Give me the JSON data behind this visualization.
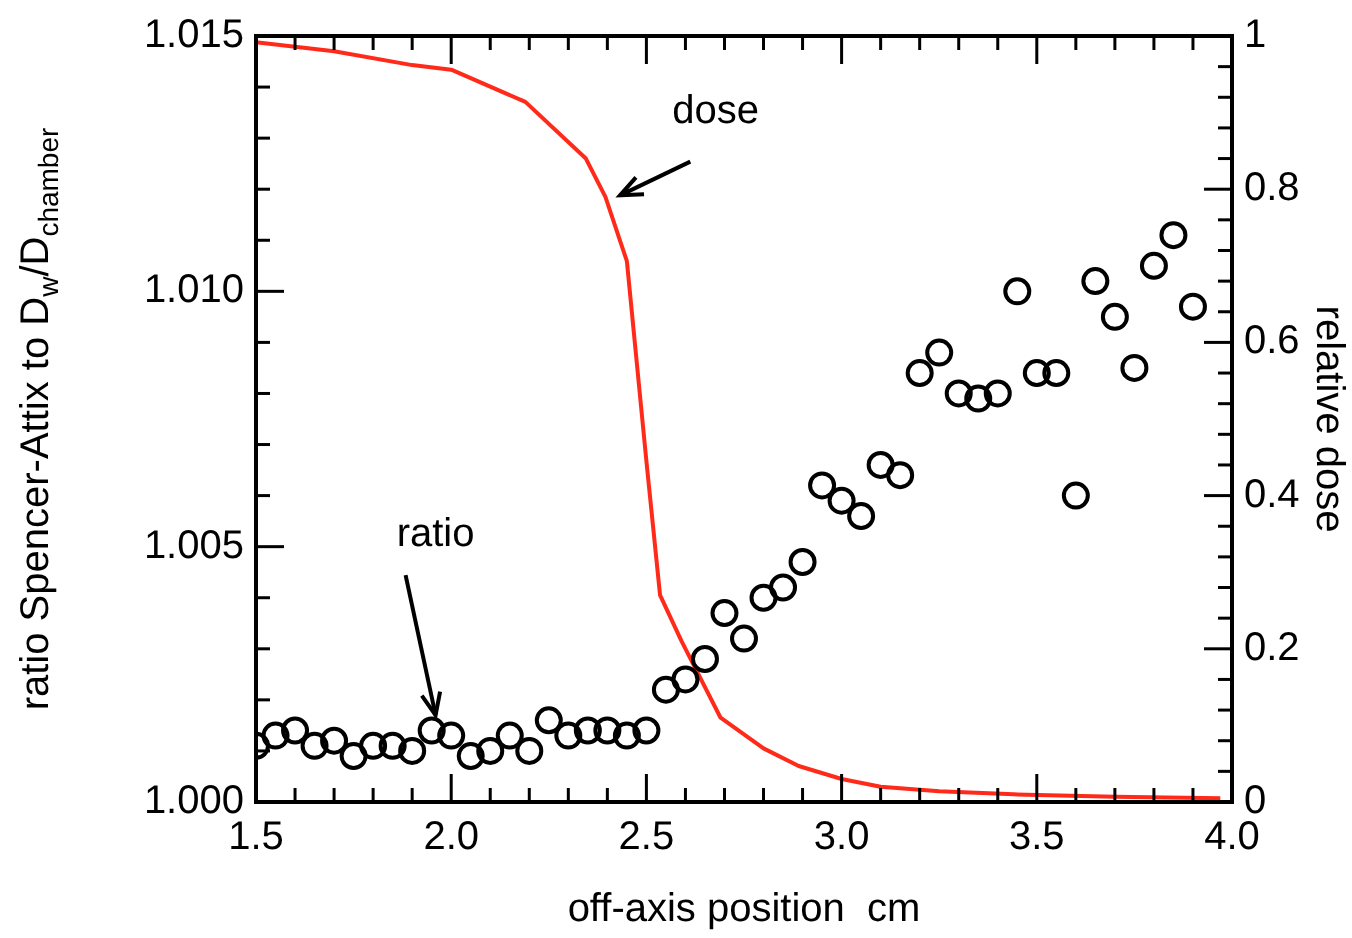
{
  "chart_data": {
    "type": "scatter",
    "xlabel": "off-axis position  cm",
    "ylabel": "ratio Spencer-Attix to D$_{w}$/D$_{chamber}$",
    "y2label": "relative dose",
    "xlim": [
      1.5,
      4.0
    ],
    "xticks": [
      {
        "value": 1.5,
        "label": "1.5"
      },
      {
        "value": 1.6,
        "label": null
      },
      {
        "value": 1.7,
        "label": null
      },
      {
        "value": 1.8,
        "label": null
      },
      {
        "value": 1.9,
        "label": null
      },
      {
        "value": 2.0,
        "label": "2.0"
      },
      {
        "value": 2.1,
        "label": null
      },
      {
        "value": 2.2,
        "label": null
      },
      {
        "value": 2.3,
        "label": null
      },
      {
        "value": 2.4,
        "label": null
      },
      {
        "value": 2.5,
        "label": "2.5"
      },
      {
        "value": 2.6,
        "label": null
      },
      {
        "value": 2.7,
        "label": null
      },
      {
        "value": 2.8,
        "label": null
      },
      {
        "value": 2.9,
        "label": null
      },
      {
        "value": 3.0,
        "label": "3.0"
      },
      {
        "value": 3.1,
        "label": null
      },
      {
        "value": 3.2,
        "label": null
      },
      {
        "value": 3.3,
        "label": null
      },
      {
        "value": 3.4,
        "label": null
      },
      {
        "value": 3.5,
        "label": "3.5"
      },
      {
        "value": 3.6,
        "label": null
      },
      {
        "value": 3.7,
        "label": null
      },
      {
        "value": 3.8,
        "label": null
      },
      {
        "value": 3.9,
        "label": null
      },
      {
        "value": 4.0,
        "label": "4.0"
      }
    ],
    "ylim": [
      1.0,
      1.015
    ],
    "yticks": [
      {
        "value": 1.0,
        "label": "1.000"
      },
      {
        "value": 1.001,
        "label": null
      },
      {
        "value": 1.002,
        "label": null
      },
      {
        "value": 1.003,
        "label": null
      },
      {
        "value": 1.004,
        "label": null
      },
      {
        "value": 1.005,
        "label": "1.005"
      },
      {
        "value": 1.006,
        "label": null
      },
      {
        "value": 1.007,
        "label": null
      },
      {
        "value": 1.008,
        "label": null
      },
      {
        "value": 1.009,
        "label": null
      },
      {
        "value": 1.01,
        "label": "1.010"
      },
      {
        "value": 1.011,
        "label": null
      },
      {
        "value": 1.012,
        "label": null
      },
      {
        "value": 1.013,
        "label": null
      },
      {
        "value": 1.014,
        "label": null
      },
      {
        "value": 1.015,
        "label": "1.015"
      }
    ],
    "y2lim": [
      0,
      1
    ],
    "y2ticks": [
      0,
      {
        "value": 0.04,
        "label": null
      },
      {
        "value": 0.08,
        "label": null
      },
      {
        "value": 0.12,
        "label": null
      },
      {
        "value": 0.16,
        "label": null
      },
      0.2,
      {
        "value": 0.24,
        "label": null
      },
      {
        "value": 0.28,
        "label": null
      },
      {
        "value": 0.32,
        "label": null
      },
      {
        "value": 0.36,
        "label": null
      },
      0.4,
      {
        "value": 0.44,
        "label": null
      },
      {
        "value": 0.48,
        "label": null
      },
      {
        "value": 0.52,
        "label": null
      },
      {
        "value": 0.56,
        "label": null
      },
      0.6,
      {
        "value": 0.64,
        "label": null
      },
      {
        "value": 0.68,
        "label": null
      },
      {
        "value": 0.72,
        "label": null
      },
      {
        "value": 0.76,
        "label": null
      },
      0.8,
      {
        "value": 0.84,
        "label": null
      },
      {
        "value": 0.88,
        "label": null
      },
      {
        "value": 0.92,
        "label": null
      },
      {
        "value": 0.96,
        "label": null
      },
      1
    ],
    "grid": false,
    "legend": false,
    "annotations": [
      {
        "text": "ratio",
        "x": 1.96,
        "y": 1.0017
      },
      "dose"
    ],
    "series": [
      {
        "type": "scatter",
        "marker": "circle",
        "color": "#000000",
        "x": [
          1.5,
          1.55,
          1.6,
          1.65,
          1.7,
          1.75,
          1.8,
          1.85,
          1.9,
          1.95,
          2.0,
          2.05,
          2.1,
          2.15,
          2.2,
          2.25,
          2.3,
          2.35,
          2.4,
          2.45,
          2.5,
          2.55,
          2.6,
          2.65,
          2.7,
          2.75,
          2.8,
          2.85,
          2.9,
          2.95,
          3.0,
          3.05,
          3.1,
          3.15,
          3.2,
          3.25,
          3.3,
          3.35,
          3.4,
          3.45,
          3.5,
          3.55,
          3.6,
          3.65,
          3.7,
          3.75,
          3.8,
          3.85,
          3.9
        ],
        "values": [
          1.0011,
          1.0013,
          1.0014,
          1.0011,
          1.0012,
          1.0009,
          1.0011,
          1.0011,
          1.001,
          1.0014,
          1.0013,
          1.0009,
          1.001,
          1.0013,
          1.001,
          1.0016,
          1.0013,
          1.0014,
          1.0014,
          1.0013,
          1.0014,
          1.0022,
          1.0024,
          1.0028,
          1.0037,
          1.0032,
          1.004,
          1.0042,
          1.0047,
          1.0062,
          1.0059,
          1.0056,
          1.0066,
          1.0064,
          1.0084,
          1.0088,
          1.008,
          1.0079,
          1.008,
          1.01,
          1.0084,
          1.0084,
          1.006,
          1.0102,
          1.0095,
          1.0085,
          1.0105,
          1.0111,
          1.0097
        ]
      },
      {
        "type": "line",
        "axis": "y2",
        "marker": "none",
        "line_style": "solid",
        "color": "#ff2a1a",
        "x": [
          1.5,
          1.7,
          1.9,
          2.0,
          2.19,
          2.345,
          2.395,
          2.45,
          2.5,
          2.535,
          2.59,
          2.69,
          2.8,
          2.89,
          3.0,
          3.1,
          3.25,
          3.44,
          3.7,
          3.97
        ],
        "values": [
          0.992,
          0.98,
          0.962,
          0.956,
          0.914,
          0.84,
          0.79,
          0.706,
          0.445,
          0.27,
          0.21,
          0.11,
          0.07,
          0.047,
          0.03,
          0.02,
          0.014,
          0.01,
          0.007,
          0.005
        ]
      }
    ]
  }
}
